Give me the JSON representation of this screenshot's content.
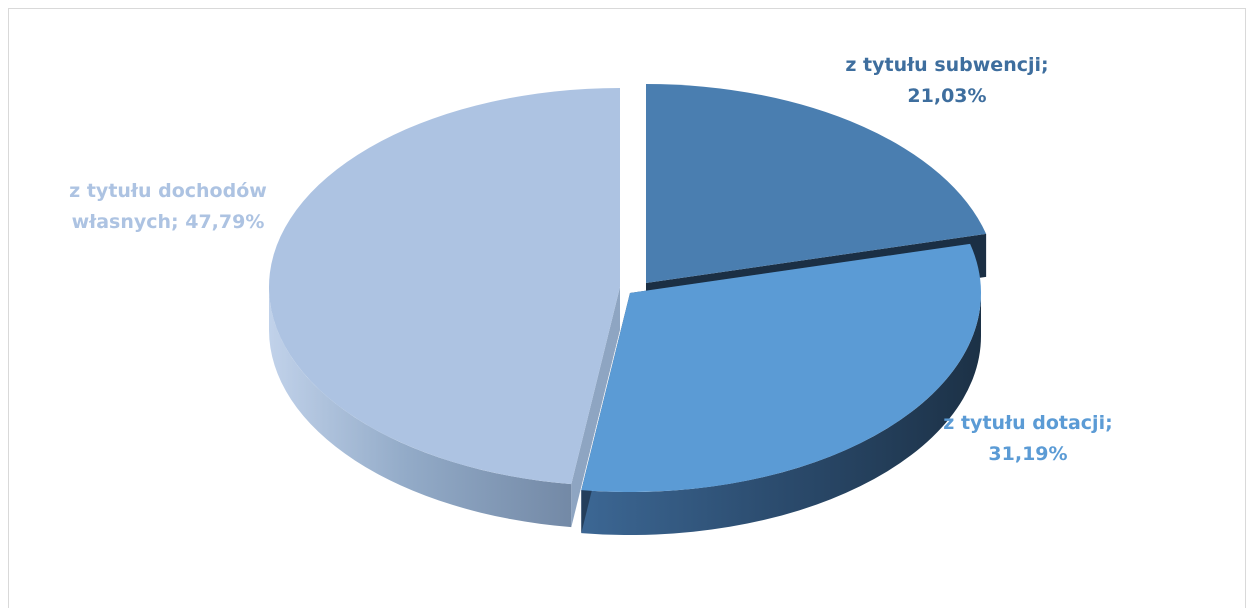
{
  "chart_data": {
    "type": "pie",
    "title": "",
    "style": "3d-exploded",
    "legend": "none",
    "slices": [
      {
        "name": "z tytułu subwencji",
        "value": 21.03,
        "label_lines": [
          "z tytułu subwencji;",
          "21,03%"
        ],
        "color": "#4a7eb0",
        "label_color": "#3e6e9e"
      },
      {
        "name": "z tytułu dotacji",
        "value": 31.19,
        "label_lines": [
          "z tytułu dotacji;",
          "31,19%"
        ],
        "color": "#5b9bd5",
        "label_color": "#5b9bd5"
      },
      {
        "name": "z tytułu dochodów własnych",
        "value": 47.79,
        "label_lines": [
          "z tytułu dochodów",
          "własnych; 47,79%"
        ],
        "color": "#adc3e2",
        "label_color": "#adc3e2"
      }
    ]
  }
}
